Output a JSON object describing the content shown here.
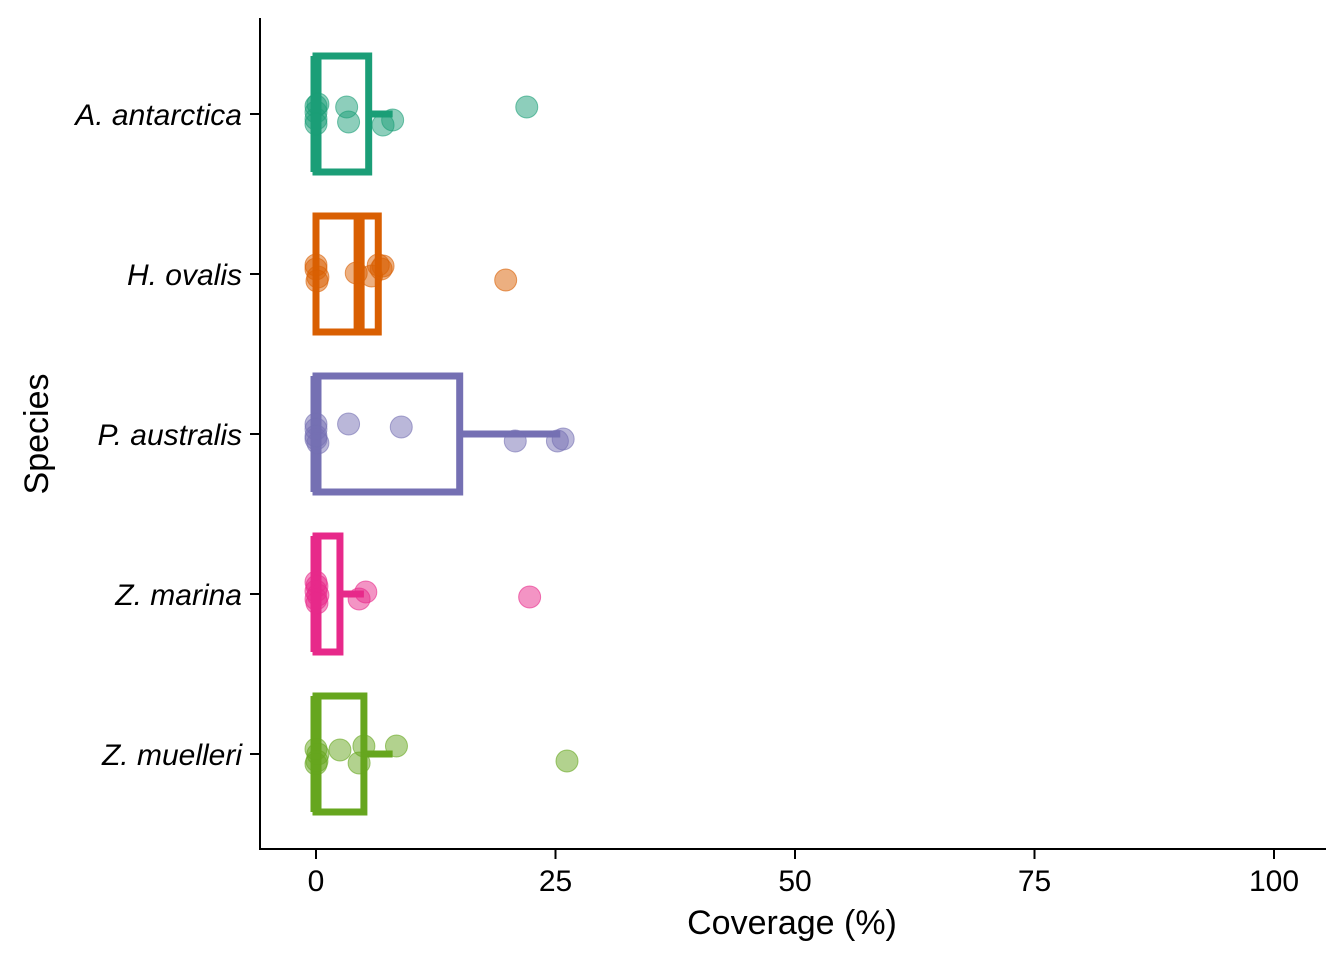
{
  "chart_data": {
    "type": "box",
    "xlabel": "Coverage (%)",
    "ylabel": "Species",
    "xlim": [
      -6,
      105
    ],
    "xticks": [
      0,
      25,
      50,
      75,
      100
    ],
    "categories": [
      "A. antarctica",
      "H. ovalis",
      "P. australis",
      "Z. marina",
      "Z. muelleri"
    ],
    "series": [
      {
        "category": "A. antarctica",
        "color": "#1b9e77",
        "box": {
          "min": 0,
          "q1": 0,
          "median": 0,
          "q3": 5.5,
          "max": 8
        },
        "points": [
          {
            "x": 0,
            "jitter": 0.08
          },
          {
            "x": 0,
            "jitter": -0.05
          },
          {
            "x": 0,
            "jitter": 0.02
          },
          {
            "x": 0.2,
            "jitter": 0.1
          },
          {
            "x": 0,
            "jitter": -0.1
          },
          {
            "x": 3.2,
            "jitter": 0.07
          },
          {
            "x": 3.4,
            "jitter": -0.08
          },
          {
            "x": 7,
            "jitter": -0.11
          },
          {
            "x": 8,
            "jitter": -0.06
          },
          {
            "x": 22,
            "jitter": 0.07
          }
        ]
      },
      {
        "category": "H. ovalis",
        "color": "#d95f02",
        "box": {
          "min": 0,
          "q1": 0,
          "median": 4.5,
          "q3": 6.5,
          "max": 6.5
        },
        "points": [
          {
            "x": 0,
            "jitter": 0.05
          },
          {
            "x": 0.2,
            "jitter": -0.03
          },
          {
            "x": 0,
            "jitter": 0.09
          },
          {
            "x": 0.1,
            "jitter": -0.07
          },
          {
            "x": 4.2,
            "jitter": 0.01
          },
          {
            "x": 5.8,
            "jitter": -0.02
          },
          {
            "x": 6.8,
            "jitter": 0.05
          },
          {
            "x": 7.0,
            "jitter": 0.08
          },
          {
            "x": 6.5,
            "jitter": 0.09
          },
          {
            "x": 19.8,
            "jitter": -0.06
          }
        ]
      },
      {
        "category": "P. australis",
        "color": "#7570b3",
        "box": {
          "min": 0,
          "q1": 0,
          "median": 0,
          "q3": 15,
          "max": 25.5
        },
        "points": [
          {
            "x": 0,
            "jitter": 0.1
          },
          {
            "x": 0,
            "jitter": 0.05
          },
          {
            "x": 0,
            "jitter": -0.05
          },
          {
            "x": 0.2,
            "jitter": -0.09
          },
          {
            "x": 0,
            "jitter": -0.02
          },
          {
            "x": 3.4,
            "jitter": 0.1
          },
          {
            "x": 8.9,
            "jitter": 0.07
          },
          {
            "x": 20.8,
            "jitter": -0.07
          },
          {
            "x": 25.2,
            "jitter": -0.07
          },
          {
            "x": 25.8,
            "jitter": -0.05
          }
        ]
      },
      {
        "category": "Z. marina",
        "color": "#e7298a",
        "box": {
          "min": 0,
          "q1": 0,
          "median": 0,
          "q3": 2.5,
          "max": 5
        },
        "points": [
          {
            "x": 0,
            "jitter": 0.12
          },
          {
            "x": 0.1,
            "jitter": 0.08
          },
          {
            "x": 0,
            "jitter": 0.03
          },
          {
            "x": 0.2,
            "jitter": -0.01
          },
          {
            "x": 0,
            "jitter": -0.05
          },
          {
            "x": 0.1,
            "jitter": -0.09
          },
          {
            "x": 5.2,
            "jitter": 0.02
          },
          {
            "x": 4.5,
            "jitter": -0.05
          },
          {
            "x": 22.3,
            "jitter": -0.03
          }
        ]
      },
      {
        "category": "Z. muelleri",
        "color": "#66a61e",
        "box": {
          "min": 0,
          "q1": 0,
          "median": 0,
          "q3": 5,
          "max": 8
        },
        "points": [
          {
            "x": 0,
            "jitter": 0.05
          },
          {
            "x": 0.1,
            "jitter": -0.07
          },
          {
            "x": 0,
            "jitter": -0.1
          },
          {
            "x": 0.2,
            "jitter": 0.0
          },
          {
            "x": 2.5,
            "jitter": 0.04
          },
          {
            "x": 5.0,
            "jitter": 0.08
          },
          {
            "x": 8.4,
            "jitter": 0.08
          },
          {
            "x": 4.5,
            "jitter": -0.09
          },
          {
            "x": 26.2,
            "jitter": -0.07
          }
        ]
      }
    ]
  }
}
